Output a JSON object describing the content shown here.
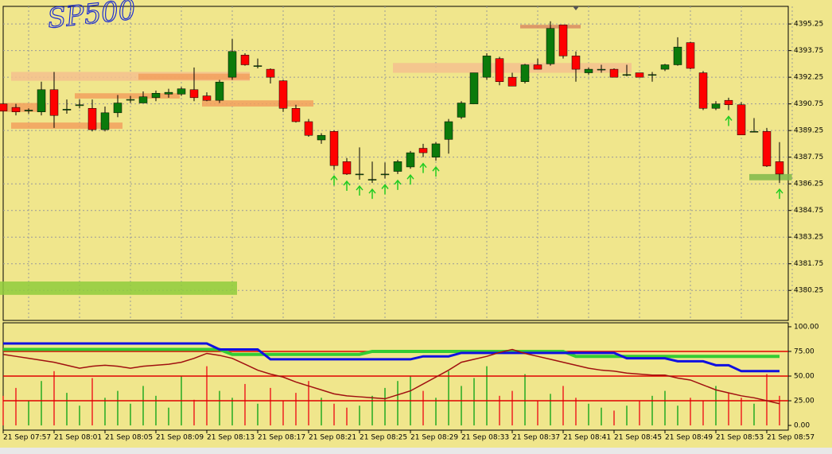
{
  "chart_data": [
    {
      "type": "candlestick",
      "title": "SP500",
      "categories": [
        "21 Sep 07:57",
        null,
        null,
        null,
        "21 Sep 08:01",
        null,
        null,
        null,
        "21 Sep 08:05",
        null,
        null,
        null,
        "21 Sep 08:09",
        null,
        null,
        null,
        "21 Sep 08:13",
        null,
        null,
        null,
        "21 Sep 08:17",
        null,
        null,
        null,
        "21 Sep 08:21",
        null,
        null,
        null,
        "21 Sep 08:25",
        null,
        null,
        null,
        "21 Sep 08:29",
        null,
        null,
        null,
        "21 Sep 08:33",
        null,
        null,
        null,
        "21 Sep 08:37",
        null,
        null,
        null,
        "21 Sep 08:41",
        null,
        null,
        null,
        "21 Sep 08:45",
        null,
        null,
        null,
        "21 Sep 08:49",
        null,
        null,
        null,
        "21 Sep 08:53",
        null,
        null,
        null,
        "21 Sep 08:57",
        null
      ],
      "open": [
        4390.75,
        4390.55,
        4390.35,
        4390.3,
        4391.55,
        4390.4,
        4390.65,
        4390.5,
        4389.3,
        4390.25,
        4391.0,
        4390.8,
        4391.1,
        4391.3,
        4391.3,
        4391.55,
        4391.2,
        4390.95,
        4392.25,
        4393.5,
        4392.9,
        4392.7,
        4392.05,
        4390.5,
        4389.75,
        4388.72,
        4389.2,
        4387.5,
        4386.8,
        4386.5,
        4386.8,
        4386.95,
        4387.2,
        4388.25,
        4387.75,
        4388.75,
        4390.0,
        4390.75,
        4392.25,
        4393.3,
        4392.25,
        4392.0,
        4392.95,
        4393.0,
        4395.2,
        4393.45,
        4392.5,
        4392.7,
        4392.7,
        4392.4,
        4392.5,
        4392.4,
        4392.7,
        4392.95,
        4394.2,
        4392.5,
        4390.5,
        4390.95,
        4390.7,
        4389.2,
        4389.2,
        4387.5
      ],
      "high": [
        4390.9,
        4390.75,
        4390.5,
        4392.0,
        4392.55,
        4391.0,
        4391.0,
        4391.0,
        4390.6,
        4391.25,
        4391.2,
        4391.45,
        4391.5,
        4391.6,
        4391.7,
        4392.8,
        4391.4,
        4392.1,
        4394.4,
        4393.6,
        4393.3,
        4392.75,
        4392.1,
        4390.7,
        4389.9,
        4389.1,
        4389.25,
        4387.7,
        4388.3,
        4387.5,
        4387.45,
        4387.6,
        4388.1,
        4388.5,
        4388.6,
        4389.9,
        4390.9,
        4392.5,
        4393.6,
        4393.4,
        4392.5,
        4393.0,
        4393.3,
        4395.4,
        4395.2,
        4393.7,
        4392.8,
        4392.95,
        4392.75,
        4392.95,
        4392.5,
        4392.55,
        4393.0,
        4394.5,
        4394.25,
        4392.6,
        4390.9,
        4391.1,
        4390.85,
        4389.95,
        4389.4,
        4388.6
      ],
      "low": [
        4390.0,
        4390.1,
        4390.2,
        4390.1,
        4389.4,
        4390.2,
        4390.5,
        4389.2,
        4389.2,
        4390.0,
        4390.8,
        4390.8,
        4390.9,
        4391.1,
        4391.2,
        4390.9,
        4390.9,
        4390.8,
        4392.1,
        4392.9,
        4392.75,
        4391.9,
        4390.3,
        4389.7,
        4388.9,
        4388.5,
        4387.05,
        4386.75,
        4386.48,
        4386.3,
        4386.55,
        4386.8,
        4387.1,
        4387.75,
        4387.55,
        4387.95,
        4389.9,
        4390.75,
        4392.1,
        4391.8,
        4391.75,
        4391.9,
        4392.7,
        4392.9,
        4393.3,
        4392.0,
        4392.4,
        4392.5,
        4392.25,
        4392.3,
        4392.25,
        4392.0,
        4392.6,
        4392.9,
        4392.7,
        4390.4,
        4390.4,
        4390.4,
        4389.0,
        4389.15,
        4387.2,
        4386.3
      ],
      "close": [
        4390.35,
        4390.3,
        4390.4,
        4391.55,
        4390.1,
        4390.45,
        4390.7,
        4389.3,
        4390.25,
        4390.8,
        4391.0,
        4391.15,
        4391.35,
        4391.4,
        4391.6,
        4391.1,
        4390.95,
        4391.98,
        4393.7,
        4392.95,
        4392.9,
        4392.25,
        4390.5,
        4389.75,
        4388.98,
        4388.98,
        4387.28,
        4386.8,
        4386.8,
        4386.5,
        4386.8,
        4387.5,
        4388.0,
        4388.0,
        4388.5,
        4389.75,
        4390.8,
        4392.5,
        4393.45,
        4392.0,
        4391.75,
        4392.95,
        4392.7,
        4395.0,
        4393.45,
        4392.7,
        4392.7,
        4392.7,
        4392.25,
        4392.4,
        4392.25,
        4392.4,
        4392.95,
        4393.95,
        4392.75,
        4390.5,
        4390.75,
        4390.7,
        4389.0,
        4389.2,
        4387.25,
        4386.8
      ],
      "up_color": "#0b7a0b",
      "down_color": "#ff0000",
      "zones": [
        {
          "from": 1,
          "to": 19,
          "top": 4392.55,
          "bottom": 4392.05,
          "color": "#f4c08e"
        },
        {
          "from": 11,
          "to": 19,
          "top": 4392.45,
          "bottom": 4392.1,
          "color": "#f2a05e"
        },
        {
          "from": 6,
          "to": 13.5,
          "top": 4391.35,
          "bottom": 4391.05,
          "color": "#f2a05e"
        },
        {
          "from": 16,
          "to": 24,
          "top": 4390.95,
          "bottom": 4390.6,
          "color": "#f2a05e"
        },
        {
          "from": 1,
          "to": 9,
          "top": 4389.7,
          "bottom": 4389.35,
          "color": "#f2a05e"
        },
        {
          "from": 0,
          "to": 3,
          "top": 4390.8,
          "bottom": 4390.3,
          "color": "#f2a05e"
        },
        {
          "from": 31,
          "to": 49,
          "top": 4393.05,
          "bottom": 4392.5,
          "color": "#f4c08e"
        },
        {
          "from": 41,
          "to": 45,
          "top": 4395.2,
          "bottom": 4395.0,
          "color": "#d98a60"
        },
        {
          "from": 0,
          "to": 18,
          "top": 4380.75,
          "bottom": 4380.0,
          "color": "#8fcb3c"
        },
        {
          "from": 59,
          "to": 61.6,
          "top": 4386.8,
          "bottom": 4386.45,
          "color": "#7fb84a"
        }
      ],
      "arrows": [
        26,
        27,
        28,
        29,
        30,
        31,
        32,
        33,
        34,
        57,
        61
      ],
      "arrow_color": "#22cc22",
      "ylim": [
        4378.56,
        4396.24
      ],
      "yticks": [
        4395.25,
        4393.75,
        4392.25,
        4390.75,
        4389.25,
        4387.75,
        4386.25,
        4384.75,
        4383.25,
        4381.75,
        4380.25
      ],
      "grid": true
    },
    {
      "type": "indicator",
      "ylim": [
        -4.8,
        104
      ],
      "yticks": [
        {
          "value": 100,
          "label": "100.00"
        },
        {
          "value": 75,
          "label": "75.00"
        },
        {
          "value": 50,
          "label": "50.00"
        },
        {
          "value": 25,
          "label": "25.00"
        },
        {
          "value": 0,
          "label": "0.00"
        }
      ],
      "levels": [
        75,
        50,
        25
      ],
      "level_color": "#e00000",
      "histogram": [
        30,
        38,
        25,
        45,
        55,
        33,
        20,
        48,
        28,
        35,
        22,
        40,
        30,
        18,
        50,
        26,
        60,
        35,
        28,
        42,
        22,
        38,
        25,
        33,
        45,
        28,
        22,
        18,
        20,
        30,
        38,
        45,
        50,
        35,
        28,
        55,
        40,
        48,
        60,
        30,
        35,
        52,
        25,
        32,
        40,
        28,
        22,
        18,
        15,
        20,
        25,
        30,
        35,
        20,
        28,
        25,
        40,
        33,
        28,
        22,
        52,
        30
      ],
      "series": [
        {
          "color": "#33cc33",
          "width": 4,
          "values": [
            77,
            77,
            77,
            77,
            77,
            77,
            77,
            77,
            77,
            77,
            77,
            77,
            77,
            77,
            77,
            77,
            77,
            77,
            72,
            72,
            72,
            72,
            72,
            72,
            72,
            72,
            72,
            72,
            72,
            75,
            75,
            75,
            75,
            75,
            75,
            75,
            75,
            75,
            75,
            75,
            75,
            75,
            75,
            75,
            75,
            70,
            70,
            70,
            70,
            70,
            70,
            70,
            70,
            70,
            70,
            70,
            70,
            70,
            70,
            70,
            70,
            70
          ]
        },
        {
          "color": "#1010e0",
          "width": 3,
          "values": [
            83,
            83,
            83,
            83,
            83,
            83,
            83,
            83,
            83,
            83,
            83,
            83,
            83,
            83,
            83,
            83,
            83,
            77,
            77,
            77,
            77,
            67,
            67,
            67,
            67,
            67,
            67,
            67,
            67,
            67,
            67,
            67,
            67,
            70,
            70,
            70,
            73.5,
            73.5,
            73.5,
            73.5,
            73.5,
            73.5,
            73.5,
            73.5,
            73.5,
            73.5,
            73.5,
            73.5,
            73.5,
            68,
            68,
            68,
            68,
            65,
            65,
            65,
            61,
            61,
            55,
            55,
            55,
            55
          ]
        },
        {
          "color": "#a01010",
          "width": 1.5,
          "values": [
            72,
            70,
            68,
            66,
            64,
            61,
            58,
            60,
            61,
            60,
            58,
            60,
            61,
            62,
            64,
            68,
            73,
            71,
            68,
            62,
            56,
            52,
            49,
            44,
            40,
            36,
            32,
            30,
            29,
            28,
            27,
            31,
            35,
            42,
            49,
            56,
            64,
            67,
            70,
            74,
            77,
            73,
            70,
            67,
            64,
            61,
            58,
            56,
            55,
            53,
            52,
            51,
            51,
            48,
            46,
            41,
            36,
            33,
            30,
            28,
            25,
            22
          ]
        }
      ]
    }
  ]
}
